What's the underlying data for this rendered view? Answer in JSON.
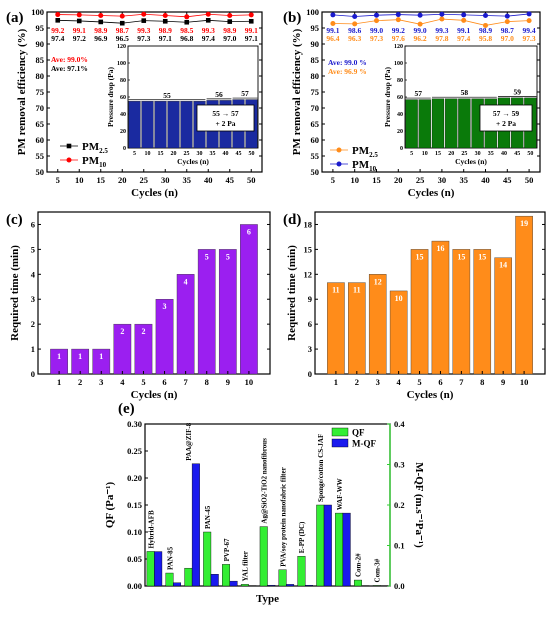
{
  "chart_data": [
    {
      "panel": "(a)",
      "type": "line",
      "x": [
        5,
        10,
        15,
        20,
        25,
        30,
        35,
        40,
        45,
        50
      ],
      "xlabel": "Cycles (n)",
      "ylabel": "PM removal efficiency (%)",
      "xlim": [
        2.5,
        52.5
      ],
      "ylim": [
        50,
        100
      ],
      "yticks": [
        50,
        55,
        60,
        65,
        70,
        75,
        80,
        85,
        90,
        95,
        100
      ],
      "series": [
        {
          "name": "PM2.5",
          "name_main": "PM",
          "name_sub": "2.5",
          "marker": "square",
          "color": "#000000",
          "values": [
            97.4,
            97.2,
            96.9,
            96.5,
            97.3,
            97.1,
            96.8,
            97.4,
            97.0,
            97.1
          ],
          "labels": [
            "97.4",
            "97.2",
            "96.9",
            "96.5",
            "97.3",
            "97.1",
            "96.8",
            "97.4",
            "97.0",
            "97.1"
          ]
        },
        {
          "name": "PM10",
          "name_main": "PM",
          "name_sub": "10",
          "marker": "circle",
          "color": "#ff0000",
          "values": [
            99.2,
            99.1,
            98.9,
            98.7,
            99.3,
            98.9,
            98.5,
            99.3,
            98.9,
            99.1
          ],
          "labels": [
            "99.2",
            "99.1",
            "98.9",
            "98.7",
            "99.3",
            "98.9",
            "98.5",
            "99.3",
            "98.9",
            "99.1"
          ]
        }
      ],
      "averages": [
        {
          "text": "Ave: 99.0%",
          "color": "#ff0000"
        },
        {
          "text": "Ave: 97.1%",
          "color": "#000000"
        }
      ],
      "inset": {
        "type": "bar",
        "x": [
          5,
          10,
          15,
          20,
          25,
          30,
          35,
          40,
          45,
          50
        ],
        "values": [
          55,
          55,
          55,
          55,
          55,
          55,
          56,
          56,
          57,
          57
        ],
        "color": "#1a2aa0",
        "ylabel": "Pressure drop (Pa)",
        "xlabel": "Cycles (n)",
        "ylim": [
          0,
          120
        ],
        "yticks": [
          0,
          20,
          40,
          60,
          80,
          100,
          120
        ],
        "level_labels": [
          {
            "text": "55",
            "group": [
              0,
              5
            ]
          },
          {
            "text": "56",
            "group": [
              6,
              7
            ]
          },
          {
            "text": "57",
            "group": [
              8,
              9
            ]
          }
        ],
        "note": [
          "55 → 57",
          "+ 2 Pa"
        ]
      }
    },
    {
      "panel": "(b)",
      "type": "line",
      "x": [
        5,
        10,
        15,
        20,
        25,
        30,
        35,
        40,
        45,
        50
      ],
      "xlabel": "Cycles (n)",
      "ylabel": "PM removal efficiency (%)",
      "xlim": [
        2.5,
        52.5
      ],
      "ylim": [
        50,
        100
      ],
      "yticks": [
        50,
        55,
        60,
        65,
        70,
        75,
        80,
        85,
        90,
        95,
        100
      ],
      "series": [
        {
          "name": "PM2.5",
          "name_main": "PM",
          "name_sub": "2.5",
          "marker": "circle",
          "color": "#ff8c1a",
          "values": [
            96.4,
            96.3,
            97.3,
            97.6,
            96.2,
            97.8,
            97.4,
            95.8,
            97.0,
            97.3
          ],
          "labels": [
            "96.4",
            "96.3",
            "97.3",
            "97.6",
            "96.2",
            "97.8",
            "97.4",
            "95.8",
            "97.0",
            "97.3"
          ]
        },
        {
          "name": "PM10",
          "name_main": "PM",
          "name_sub": "10",
          "marker": "circle",
          "color": "#1a1acc",
          "values": [
            99.1,
            98.6,
            99.0,
            99.2,
            99.0,
            99.3,
            99.1,
            98.9,
            98.7,
            99.4
          ],
          "labels": [
            "99.1",
            "98.6",
            "99.0",
            "99.2",
            "99.0",
            "99.3",
            "99.1",
            "98.9",
            "98.7",
            "99.4"
          ]
        }
      ],
      "averages": [
        {
          "text": "Ave: 99.0 %",
          "color": "#1a1acc"
        },
        {
          "text": "Ave: 96.9 %",
          "color": "#ff8c1a"
        }
      ],
      "inset": {
        "type": "bar",
        "x": [
          5,
          10,
          15,
          20,
          25,
          30,
          35,
          40,
          45,
          50
        ],
        "values": [
          57,
          57,
          58,
          58,
          58,
          58,
          58,
          59,
          59,
          59
        ],
        "color": "#0a7a0a",
        "ylabel": "Pressure drop (Pa)",
        "xlabel": "Cycles (n)",
        "ylim": [
          0,
          120
        ],
        "yticks": [
          0,
          20,
          40,
          60,
          80,
          100,
          120
        ],
        "level_labels": [
          {
            "text": "57",
            "group": [
              0,
              1
            ]
          },
          {
            "text": "58",
            "group": [
              2,
              6
            ]
          },
          {
            "text": "59",
            "group": [
              7,
              9
            ]
          }
        ],
        "note": [
          "57 → 59",
          "+ 2 Pa"
        ]
      }
    },
    {
      "panel": "(c)",
      "type": "bar",
      "categories": [
        "1",
        "2",
        "3",
        "4",
        "5",
        "6",
        "7",
        "8",
        "9",
        "10"
      ],
      "values": [
        1,
        1,
        1,
        2,
        2,
        3,
        4,
        5,
        5,
        6
      ],
      "labels": [
        "1",
        "1",
        "1",
        "2",
        "2",
        "3",
        "4",
        "5",
        "5",
        "6"
      ],
      "color": "#9b1ff0",
      "xlabel": "Cycles (n)",
      "ylabel": "Required time (min)",
      "ylim": [
        0,
        6.5
      ],
      "yticks": [
        0,
        1,
        2,
        3,
        4,
        5,
        6
      ]
    },
    {
      "panel": "(d)",
      "type": "bar",
      "categories": [
        "1",
        "2",
        "3",
        "4",
        "5",
        "6",
        "7",
        "8",
        "9",
        "10"
      ],
      "values": [
        11,
        11,
        12,
        10,
        15,
        16,
        15,
        15,
        14,
        19
      ],
      "labels": [
        "11",
        "11",
        "12",
        "10",
        "15",
        "16",
        "15",
        "15",
        "14",
        "19"
      ],
      "color": "#ff8c1a",
      "xlabel": "Cycles (n)",
      "ylabel": "Required time (min)",
      "ylim": [
        0,
        19.5
      ],
      "yticks": [
        0,
        3,
        6,
        9,
        12,
        15,
        18
      ]
    },
    {
      "panel": "(e)",
      "type": "bar",
      "categories": [
        "Hybrid-AFB",
        "PAN-85",
        "PAA@ZIF-8",
        "PAN-45",
        "PVP-67",
        "YAL filter",
        "Ag@SiO2-TiO2 nanofibrous",
        "PVA/soy protein nanofabric filter",
        "E-PP (DC)",
        "Sponge/cotton CS-JAF",
        "WAF-WW",
        "Com-2#",
        "Com-3#"
      ],
      "series": [
        {
          "name": "QF",
          "axis": "left",
          "color": "#33ee33",
          "values": [
            0.064,
            0.024,
            0.033,
            0.1,
            0.04,
            0.003,
            0.11,
            0.03,
            0.055,
            0.15,
            0.135,
            0.011,
            0.001
          ]
        },
        {
          "name": "M-QF",
          "axis": "right",
          "color": "#1a1aee",
          "values": [
            0.085,
            0.008,
            0.302,
            0.029,
            0.012,
            0.001,
            0.002,
            0.004,
            0.002,
            0.2,
            0.18,
            0.001,
            0.001
          ]
        }
      ],
      "xlabel": "Type",
      "ylabel_left": "QF (Pa⁻¹)",
      "ylabel_right": "M-QF (m.s⁻¹Pa⁻¹)",
      "ylim_left": [
        0,
        0.3
      ],
      "ylim_right": [
        0,
        0.4
      ],
      "yticks_left": [
        "0.00",
        "0.05",
        "0.10",
        "0.15",
        "0.20",
        "0.25",
        "0.30"
      ],
      "yticks_right": [
        "0.0",
        "0.1",
        "0.2",
        "0.3",
        "0.4"
      ],
      "legend": "top-right"
    }
  ]
}
